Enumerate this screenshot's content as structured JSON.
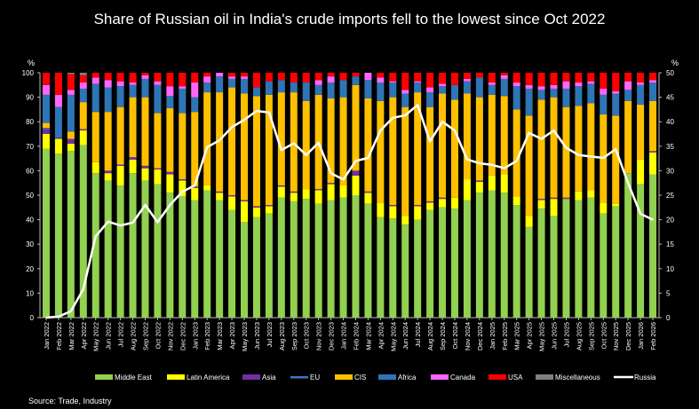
{
  "chart_data": {
    "type": "bar",
    "stacked": true,
    "title": "Share of Russian oil in India's crude imports fell to the lowest since Oct 2022",
    "source": "Source: Trade, Industry",
    "left_axis": {
      "unit": "%",
      "range": [
        0,
        100
      ],
      "ticks": [
        0,
        10,
        20,
        30,
        40,
        50,
        60,
        70,
        80,
        90,
        100
      ]
    },
    "right_axis": {
      "unit": "%",
      "range": [
        0,
        50
      ],
      "ticks": [
        0,
        5,
        10,
        15,
        20,
        25,
        30,
        35,
        40,
        45,
        50
      ]
    },
    "grid": false,
    "legend_placement": "bottom",
    "categories": [
      "Jan 2022",
      "Feb 2022",
      "Mar 2022",
      "Apr 2022",
      "May 2022",
      "Jun 2022",
      "Jul 2022",
      "Aug 2022",
      "Sep 2022",
      "Oct 2022",
      "Nov 2022",
      "Dec 2022",
      "Jan 2023",
      "Feb 2023",
      "Mar 2023",
      "Apr 2023",
      "May 2023",
      "Jun 2023",
      "Jul 2023",
      "Aug 2023",
      "Sep 2023",
      "Oct 2023",
      "Nov 2023",
      "Dec 2023",
      "Jan 2024",
      "Feb 2024",
      "Mar 2024",
      "Apr 2024",
      "May 2024",
      "Jun 2024",
      "Jul 2024",
      "Aug 2024",
      "Sep 2024",
      "Oct 2024",
      "Nov 2024",
      "Dec 2024",
      "Jan 2025",
      "Feb 2025",
      "Mar 2025",
      "Apr 2025",
      "May 2025",
      "Jun 2025",
      "Jul 2025",
      "Aug 2025",
      "Sep 2025",
      "Oct 2025",
      "Nov 2025",
      "Dec 2025",
      "Jan 2026",
      "Feb 2026"
    ],
    "series": [
      {
        "name": "Middle East",
        "color": "#92d050",
        "values": [
          69,
          67,
          68,
          70.5,
          59,
          56,
          54,
          59,
          56,
          54.5,
          51,
          49.5,
          48,
          52,
          48,
          44,
          39,
          41,
          42.5,
          49,
          47.5,
          48.5,
          46.5,
          48,
          49,
          50,
          46.5,
          41,
          40.5,
          38,
          40,
          44,
          45,
          44.5,
          48,
          51,
          52,
          51,
          46,
          37,
          44.5,
          41.5,
          48.5,
          48,
          49,
          42.5,
          45.5,
          59,
          54.5,
          58.5
        ]
      },
      {
        "name": "Latin America",
        "color": "#ffff00",
        "values": [
          6,
          6,
          3,
          6,
          4.5,
          3,
          8,
          5.5,
          5,
          6,
          7.5,
          6.5,
          5,
          2,
          3,
          5.5,
          8.5,
          4,
          3,
          4.5,
          3.5,
          4,
          5.5,
          6.5,
          5,
          8,
          4.5,
          6,
          5,
          3.5,
          5.5,
          3,
          3.5,
          4.5,
          8.5,
          4.5,
          6,
          7.5,
          3.5,
          4.5,
          3.5,
          7,
          0,
          3.5,
          3,
          4.5,
          1,
          0,
          10,
          9
        ]
      },
      {
        "name": "Asia",
        "color": "#7030a0",
        "values": [
          2,
          0.5,
          2,
          0.5,
          0,
          1,
          0.5,
          1,
          1,
          0.5,
          1,
          0.5,
          0.5,
          0,
          0.5,
          0.5,
          0.5,
          0.5,
          0.5,
          0.5,
          0.5,
          0,
          0.5,
          0.5,
          0,
          2,
          0.5,
          0,
          0.5,
          0,
          0.5,
          0.5,
          0.5,
          0,
          0,
          0.5,
          0,
          0,
          0,
          0,
          0.5,
          0.5,
          0.5,
          0,
          0,
          0,
          0,
          0,
          0,
          0.5
        ]
      },
      {
        "name": "EU",
        "color": "#4472c4",
        "values": [
          0.5,
          0,
          0,
          0,
          0,
          0,
          0,
          0,
          0,
          0,
          0,
          0,
          0,
          0,
          0,
          0,
          0,
          0,
          0,
          0,
          0,
          0,
          0,
          0,
          0,
          0,
          0,
          0,
          0,
          0,
          0,
          0,
          0,
          0,
          0,
          0,
          0,
          0,
          0,
          0,
          0,
          0,
          0,
          0,
          0,
          0,
          0,
          0,
          0,
          0
        ]
      },
      {
        "name": "CIS",
        "color": "#ffc000",
        "values": [
          2,
          0,
          3,
          11,
          20.5,
          24,
          23.5,
          24.5,
          28,
          22.5,
          26,
          27,
          30.5,
          38,
          40.5,
          44,
          43.5,
          45,
          45,
          38,
          40.5,
          36,
          38.5,
          34.5,
          36,
          35,
          38,
          41.5,
          44,
          44.5,
          46,
          38.5,
          42.5,
          40,
          35,
          34,
          33,
          32,
          35.5,
          41,
          40.5,
          41,
          37,
          35,
          35.5,
          36,
          36,
          29.5,
          22.5,
          20.5
        ]
      },
      {
        "name": "Africa",
        "color": "#2e75b6",
        "values": [
          11.5,
          12.5,
          15,
          5.5,
          11.5,
          10,
          8.5,
          5,
          7.5,
          11.5,
          5,
          10,
          6,
          4,
          6.5,
          3.5,
          6,
          3.5,
          5.5,
          5,
          4,
          7.5,
          4,
          6.5,
          7,
          3.5,
          7.5,
          7.5,
          6,
          5.5,
          4,
          6,
          3,
          6,
          5,
          8,
          4,
          7,
          9.5,
          11,
          4,
          3.5,
          7.5,
          8,
          8,
          8,
          9,
          4.5,
          8,
          7.5
        ]
      },
      {
        "name": "Canada",
        "color": "#ff66ff",
        "values": [
          4,
          5,
          2,
          2.5,
          2.5,
          3,
          2,
          1,
          1.5,
          1.5,
          4,
          1,
          6,
          2.5,
          1.5,
          1,
          1,
          0,
          0,
          0,
          0,
          0,
          2,
          2.5,
          0,
          0,
          3,
          2,
          0.5,
          1.5,
          0.5,
          2,
          1,
          0,
          1,
          0,
          1,
          1.5,
          1.5,
          1.5,
          1.5,
          1.5,
          3,
          1.5,
          1,
          2.5,
          1,
          3.5,
          1,
          1
        ]
      },
      {
        "name": "USA",
        "color": "#ff0000",
        "values": [
          5,
          9,
          6.5,
          3,
          2,
          3,
          3.5,
          4,
          1,
          3.5,
          5.5,
          5.5,
          4,
          1.5,
          0,
          1.5,
          1.5,
          6,
          3.5,
          3,
          4,
          4,
          3,
          1.5,
          3,
          1.5,
          0,
          2,
          3.5,
          7,
          3.5,
          6,
          4.5,
          5,
          2.5,
          2,
          4,
          1,
          4,
          5,
          5.5,
          5,
          3.5,
          4,
          3.5,
          6.5,
          7.5,
          3.5,
          4,
          3
        ]
      },
      {
        "name": "Miscellaneous",
        "color": "#808080",
        "values": [
          0,
          0,
          0.5,
          1,
          0,
          0,
          0,
          0,
          0,
          0,
          0,
          0,
          0,
          0,
          0,
          0,
          0,
          0,
          0,
          0,
          0,
          0,
          0,
          0,
          0,
          0,
          0,
          0,
          0,
          0,
          0,
          0,
          0,
          0,
          0,
          0,
          0,
          0,
          0,
          0,
          0,
          0,
          0,
          0,
          0,
          0,
          0,
          0,
          0,
          0
        ]
      }
    ],
    "line_series": {
      "name": "Russia",
      "color": "#ffffff",
      "axis": "right",
      "values": [
        0,
        0.2,
        1.3,
        5.8,
        16.6,
        19.6,
        18.8,
        19.4,
        23,
        19.5,
        23,
        25.7,
        27,
        34.8,
        36.2,
        38.9,
        40.4,
        42.2,
        41.9,
        34.2,
        35.6,
        33.2,
        35.7,
        29.5,
        28.2,
        32,
        32.6,
        38.2,
        40.8,
        41.3,
        43.4,
        36,
        40,
        38.2,
        32.3,
        31.5,
        31.2,
        30.5,
        32,
        37.7,
        36.5,
        38.2,
        34.7,
        33.2,
        32.9,
        32.6,
        34.4,
        27.5,
        21.2,
        20
      ]
    }
  }
}
